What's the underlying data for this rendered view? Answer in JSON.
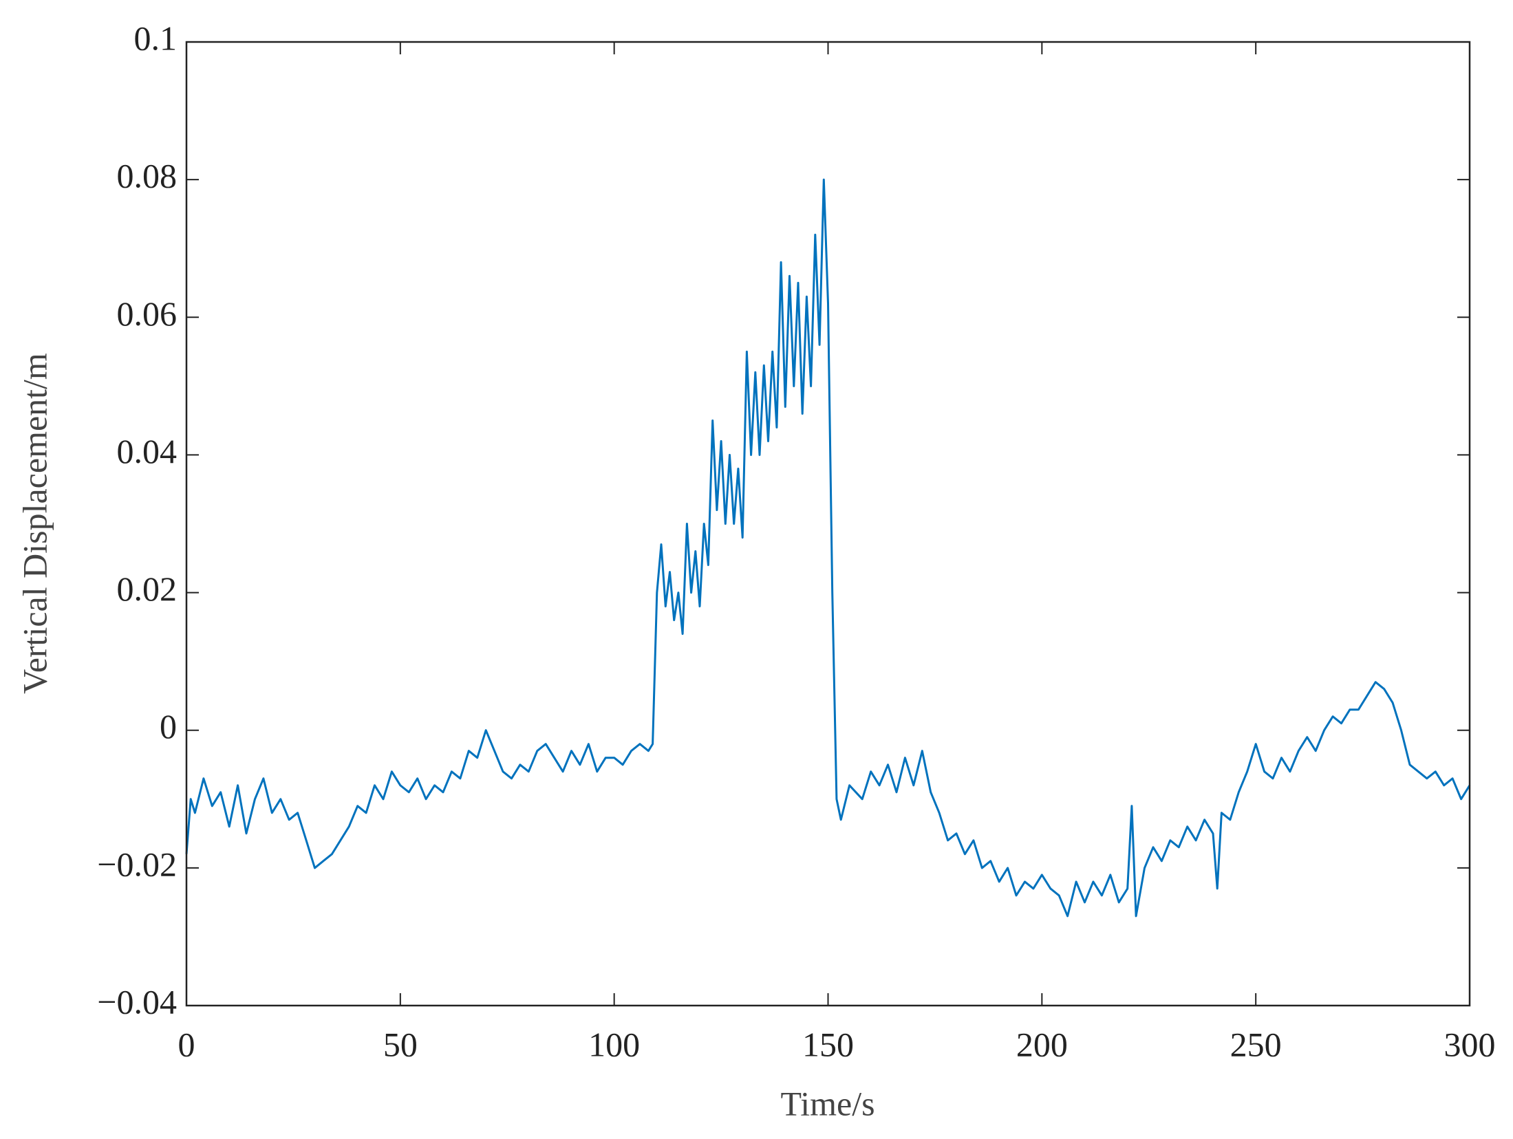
{
  "chart_data": {
    "type": "line",
    "xlabel": "Time/s",
    "ylabel": "Vertical Displacement/m",
    "xlim": [
      0,
      300
    ],
    "xticks": [
      0,
      50,
      100,
      150,
      200,
      250,
      300
    ],
    "ylim": [
      -0.04,
      0.1
    ],
    "yticks": [
      {
        "value": -0.04,
        "label": "−0.04"
      },
      {
        "value": -0.02,
        "label": "−0.02"
      },
      0,
      0.02,
      0.04,
      0.06,
      0.08,
      0.1
    ],
    "series": [
      {
        "color": "#0072bd",
        "x": [
          0,
          1,
          2,
          4,
          6,
          8,
          10,
          12,
          14,
          16,
          18,
          20,
          22,
          24,
          26,
          28,
          30,
          32,
          34,
          36,
          38,
          40,
          42,
          44,
          46,
          48,
          50,
          52,
          54,
          56,
          58,
          60,
          62,
          64,
          66,
          68,
          70,
          72,
          74,
          76,
          78,
          80,
          82,
          84,
          86,
          88,
          90,
          92,
          94,
          96,
          98,
          100,
          102,
          104,
          106,
          108,
          109,
          110,
          111,
          112,
          113,
          114,
          115,
          116,
          117,
          118,
          119,
          120,
          121,
          122,
          123,
          124,
          125,
          126,
          127,
          128,
          129,
          130,
          131,
          132,
          133,
          134,
          135,
          136,
          137,
          138,
          139,
          140,
          141,
          142,
          143,
          144,
          145,
          146,
          147,
          148,
          149,
          150,
          151,
          152,
          153,
          155,
          158,
          160,
          162,
          164,
          166,
          168,
          170,
          172,
          174,
          176,
          178,
          180,
          182,
          184,
          186,
          188,
          190,
          192,
          194,
          196,
          198,
          200,
          202,
          204,
          206,
          208,
          210,
          212,
          214,
          216,
          218,
          220,
          221,
          222,
          224,
          226,
          228,
          230,
          232,
          234,
          236,
          238,
          240,
          241,
          242,
          244,
          246,
          248,
          250,
          252,
          254,
          256,
          258,
          260,
          262,
          264,
          266,
          268,
          270,
          272,
          274,
          276,
          278,
          280,
          282,
          284,
          286,
          288,
          290,
          292,
          294,
          296,
          298,
          300
        ],
        "values": [
          -0.018,
          -0.01,
          -0.012,
          -0.007,
          -0.011,
          -0.009,
          -0.014,
          -0.008,
          -0.015,
          -0.01,
          -0.007,
          -0.012,
          -0.01,
          -0.013,
          -0.012,
          -0.016,
          -0.02,
          -0.019,
          -0.018,
          -0.016,
          -0.014,
          -0.011,
          -0.012,
          -0.008,
          -0.01,
          -0.006,
          -0.008,
          -0.009,
          -0.007,
          -0.01,
          -0.008,
          -0.009,
          -0.006,
          -0.007,
          -0.003,
          -0.004,
          0.0,
          -0.003,
          -0.006,
          -0.007,
          -0.005,
          -0.006,
          -0.003,
          -0.002,
          -0.004,
          -0.006,
          -0.003,
          -0.005,
          -0.002,
          -0.006,
          -0.004,
          -0.004,
          -0.005,
          -0.003,
          -0.002,
          -0.003,
          -0.002,
          0.02,
          0.027,
          0.018,
          0.023,
          0.016,
          0.02,
          0.014,
          0.03,
          0.02,
          0.026,
          0.018,
          0.03,
          0.024,
          0.045,
          0.032,
          0.042,
          0.03,
          0.04,
          0.03,
          0.038,
          0.028,
          0.055,
          0.04,
          0.052,
          0.04,
          0.053,
          0.042,
          0.055,
          0.044,
          0.068,
          0.047,
          0.066,
          0.05,
          0.065,
          0.046,
          0.063,
          0.05,
          0.072,
          0.056,
          0.08,
          0.062,
          0.02,
          -0.01,
          -0.013,
          -0.008,
          -0.01,
          -0.006,
          -0.008,
          -0.005,
          -0.009,
          -0.004,
          -0.008,
          -0.003,
          -0.009,
          -0.012,
          -0.016,
          -0.015,
          -0.018,
          -0.016,
          -0.02,
          -0.019,
          -0.022,
          -0.02,
          -0.024,
          -0.022,
          -0.023,
          -0.021,
          -0.023,
          -0.024,
          -0.027,
          -0.022,
          -0.025,
          -0.022,
          -0.024,
          -0.021,
          -0.025,
          -0.023,
          -0.011,
          -0.027,
          -0.02,
          -0.017,
          -0.019,
          -0.016,
          -0.017,
          -0.014,
          -0.016,
          -0.013,
          -0.015,
          -0.023,
          -0.012,
          -0.013,
          -0.009,
          -0.006,
          -0.002,
          -0.006,
          -0.007,
          -0.004,
          -0.006,
          -0.003,
          -0.001,
          -0.003,
          0.0,
          0.002,
          0.001,
          0.003,
          0.003,
          0.005,
          0.007,
          0.006,
          0.004,
          0.0,
          -0.005,
          -0.006,
          -0.007,
          -0.006,
          -0.008,
          -0.007,
          -0.01,
          -0.008
        ]
      }
    ]
  }
}
